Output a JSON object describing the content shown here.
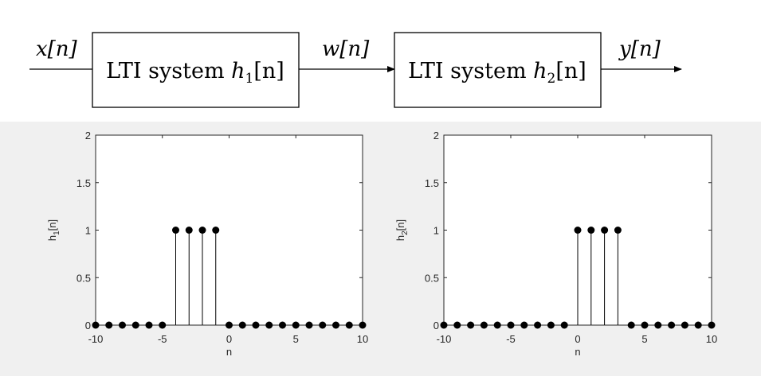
{
  "diagram": {
    "input_label": "x[n]",
    "block1": {
      "prefix": "LTI system ",
      "var": "h",
      "sub": "1",
      "suffix": "[n]"
    },
    "mid_label": "w[n]",
    "block2": {
      "prefix": "LTI system ",
      "var": "h",
      "sub": "2",
      "suffix": "[n]"
    },
    "output_label": "y[n]"
  },
  "chart_data": [
    {
      "type": "stem",
      "ylabel_main": "h",
      "ylabel_sub": "1",
      "ylabel_tail": "[n]",
      "xlabel": "n",
      "xlim": [
        -10,
        10
      ],
      "ylim": [
        0,
        2
      ],
      "xticks": [
        -10,
        -5,
        0,
        5,
        10
      ],
      "yticks": [
        0,
        0.5,
        1,
        1.5,
        2
      ],
      "x": [
        -10,
        -9,
        -8,
        -7,
        -6,
        -5,
        -4,
        -3,
        -2,
        -1,
        0,
        1,
        2,
        3,
        4,
        5,
        6,
        7,
        8,
        9,
        10
      ],
      "y": [
        0,
        0,
        0,
        0,
        0,
        0,
        1,
        1,
        1,
        1,
        0,
        0,
        0,
        0,
        0,
        0,
        0,
        0,
        0,
        0,
        0
      ]
    },
    {
      "type": "stem",
      "ylabel_main": "h",
      "ylabel_sub": "2",
      "ylabel_tail": "[n]",
      "xlabel": "n",
      "xlim": [
        -10,
        10
      ],
      "ylim": [
        0,
        2
      ],
      "xticks": [
        -10,
        -5,
        0,
        5,
        10
      ],
      "yticks": [
        0,
        0.5,
        1,
        1.5,
        2
      ],
      "x": [
        -10,
        -9,
        -8,
        -7,
        -6,
        -5,
        -4,
        -3,
        -2,
        -1,
        0,
        1,
        2,
        3,
        4,
        5,
        6,
        7,
        8,
        9,
        10
      ],
      "y": [
        0,
        0,
        0,
        0,
        0,
        0,
        0,
        0,
        0,
        0,
        1,
        1,
        1,
        1,
        0,
        0,
        0,
        0,
        0,
        0,
        0
      ]
    }
  ]
}
